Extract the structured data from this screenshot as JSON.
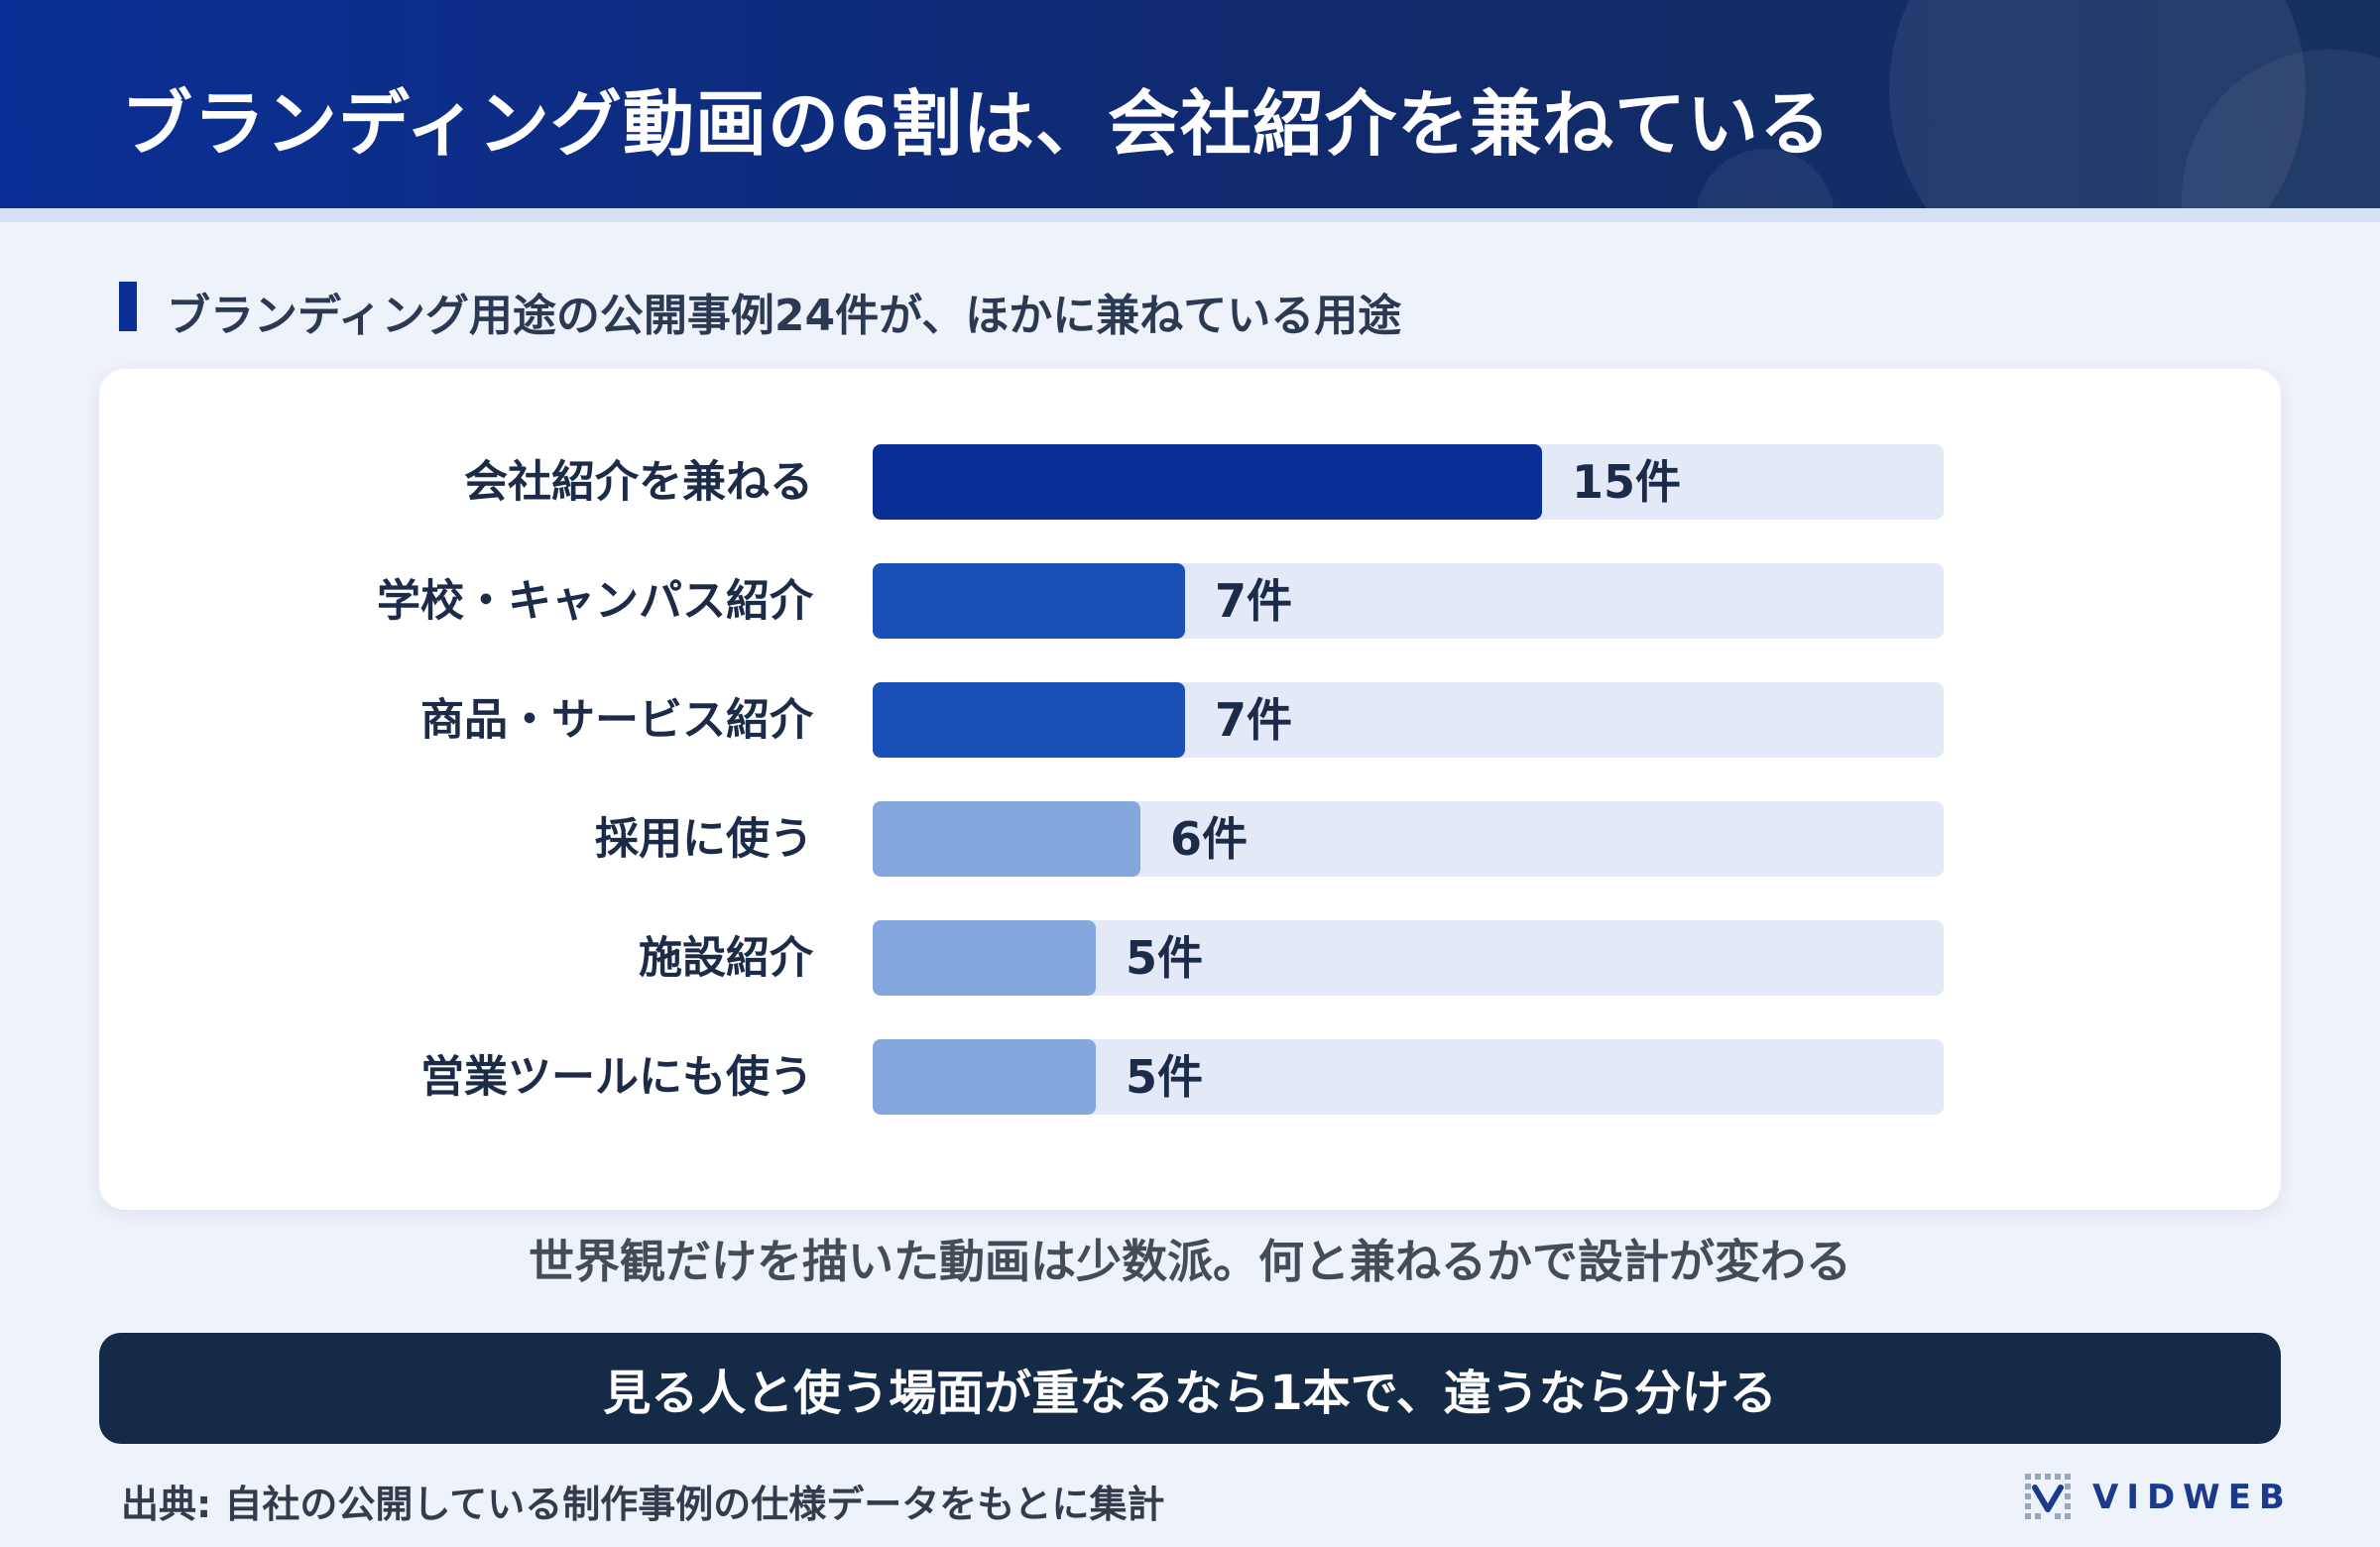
{
  "header": {
    "title": "ブランディング動画の6割は、会社紹介を兼ねている"
  },
  "subtitle": "ブランディング用途の公開事例24件が、ほかに兼ねている用途",
  "chart_data": {
    "type": "bar",
    "orientation": "horizontal",
    "categories": [
      "会社紹介を兼ねる",
      "学校・キャンパス紹介",
      "商品・サービス紹介",
      "採用に使う",
      "施設紹介",
      "営業ツールにも使う"
    ],
    "values": [
      15,
      7,
      7,
      6,
      5,
      5
    ],
    "value_labels": [
      "15件",
      "7件",
      "7件",
      "6件",
      "5件",
      "5件"
    ],
    "xlim": [
      0,
      24
    ],
    "grid": false,
    "legend": "none",
    "colors": {
      "bars": [
        "#0b2f96",
        "#1b4fb8",
        "#1b4fb8",
        "#84a8de",
        "#84a8de",
        "#84a8de"
      ],
      "track": "#e3e9f6",
      "category_text": "#1c2b48",
      "value_text": "#1c2b48"
    }
  },
  "caption": "世界観だけを描いた動画は少数派。何と兼ねるかで設計が変わる",
  "banner": "見る人と使う場面が重なるなら1本で、違うなら分ける",
  "source": "出典: 自社の公開している制作事例の仕様データをもとに集計",
  "logo": {
    "text": "VIDWEB",
    "icon": "vidweb-logo-icon"
  },
  "colors": {
    "header_start": "#0b2f96",
    "header_end": "#16305e",
    "page_bg": "#eef2fa",
    "card_bg": "#ffffff",
    "banner_bg": "#142a47",
    "accent": "#0b2f96"
  }
}
